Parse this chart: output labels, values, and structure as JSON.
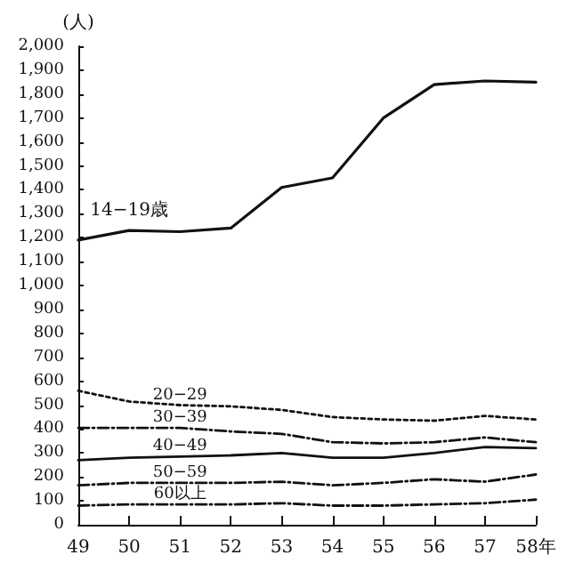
{
  "chart_data": {
    "type": "line",
    "ylabel": "(人)",
    "categories": [
      "49",
      "50",
      "51",
      "52",
      "53",
      "54",
      "55",
      "56",
      "57",
      "58年"
    ],
    "series": [
      {
        "name": "14−19歳",
        "color": "#111111",
        "line_style": "solid",
        "values": [
          1190,
          1230,
          1225,
          1240,
          1410,
          1450,
          1700,
          1840,
          1855,
          1850
        ]
      },
      {
        "name": "20−29",
        "color": "#111111",
        "line_style": "dotted",
        "values": [
          560,
          515,
          500,
          495,
          480,
          450,
          440,
          435,
          455,
          440
        ]
      },
      {
        "name": "30−39",
        "color": "#111111",
        "line_style": "dashed",
        "values": [
          405,
          405,
          405,
          390,
          380,
          345,
          340,
          345,
          365,
          345
        ]
      },
      {
        "name": "40−49",
        "color": "#111111",
        "line_style": "solid",
        "values": [
          270,
          280,
          285,
          290,
          300,
          280,
          280,
          300,
          325,
          320
        ]
      },
      {
        "name": "50−59",
        "color": "#111111",
        "line_style": "dashed",
        "values": [
          165,
          175,
          175,
          175,
          180,
          165,
          175,
          190,
          180,
          210
        ]
      },
      {
        "name": "60以上",
        "color": "#111111",
        "line_style": "dashed",
        "values": [
          80,
          85,
          85,
          85,
          90,
          80,
          80,
          85,
          90,
          105
        ]
      }
    ],
    "ylim": [
      0,
      2000
    ],
    "yticks": [
      0,
      100,
      200,
      300,
      400,
      500,
      600,
      700,
      800,
      900,
      {
        "value": 1000,
        "label": "1,000"
      },
      {
        "value": 1100,
        "label": "1,100"
      },
      {
        "value": 1200,
        "label": "1,200"
      },
      {
        "value": 1300,
        "label": "1,300"
      },
      {
        "value": 1400,
        "label": "1,400"
      },
      {
        "value": 1500,
        "label": "1,500"
      },
      {
        "value": 1600,
        "label": "1,600"
      },
      {
        "value": 1700,
        "label": "1,700"
      },
      {
        "value": 1800,
        "label": "1,800"
      },
      {
        "value": 1900,
        "label": "1,900"
      },
      {
        "value": 2000,
        "label": "2,000"
      }
    ],
    "grid": false,
    "legend": false,
    "marker": "none"
  }
}
